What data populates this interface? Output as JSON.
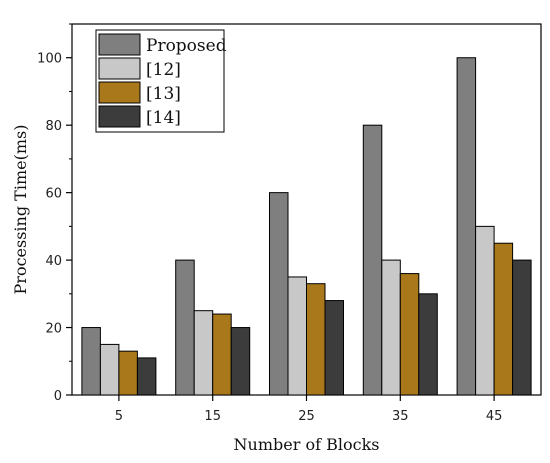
{
  "chart_data": {
    "type": "bar",
    "title": "",
    "xlabel": "Number of Blocks",
    "ylabel": "Processing Time(ms)",
    "categories": [
      "5",
      "15",
      "25",
      "35",
      "45"
    ],
    "ylim": [
      0,
      110
    ],
    "yticks": [
      0,
      20,
      40,
      60,
      80,
      100
    ],
    "grid": false,
    "legend": "top-left",
    "series": [
      {
        "name": "Proposed",
        "values": [
          20,
          40,
          60,
          80,
          100
        ],
        "color": "#7f7f7f"
      },
      {
        "name": "[12]",
        "values": [
          15,
          25,
          35,
          40,
          50
        ],
        "color": "#c8c8c8"
      },
      {
        "name": "[13]",
        "values": [
          13,
          24,
          33,
          36,
          45
        ],
        "color": "#a8781b"
      },
      {
        "name": "[14]",
        "values": [
          11,
          20,
          28,
          30,
          40
        ],
        "color": "#3c3c3c"
      }
    ]
  }
}
